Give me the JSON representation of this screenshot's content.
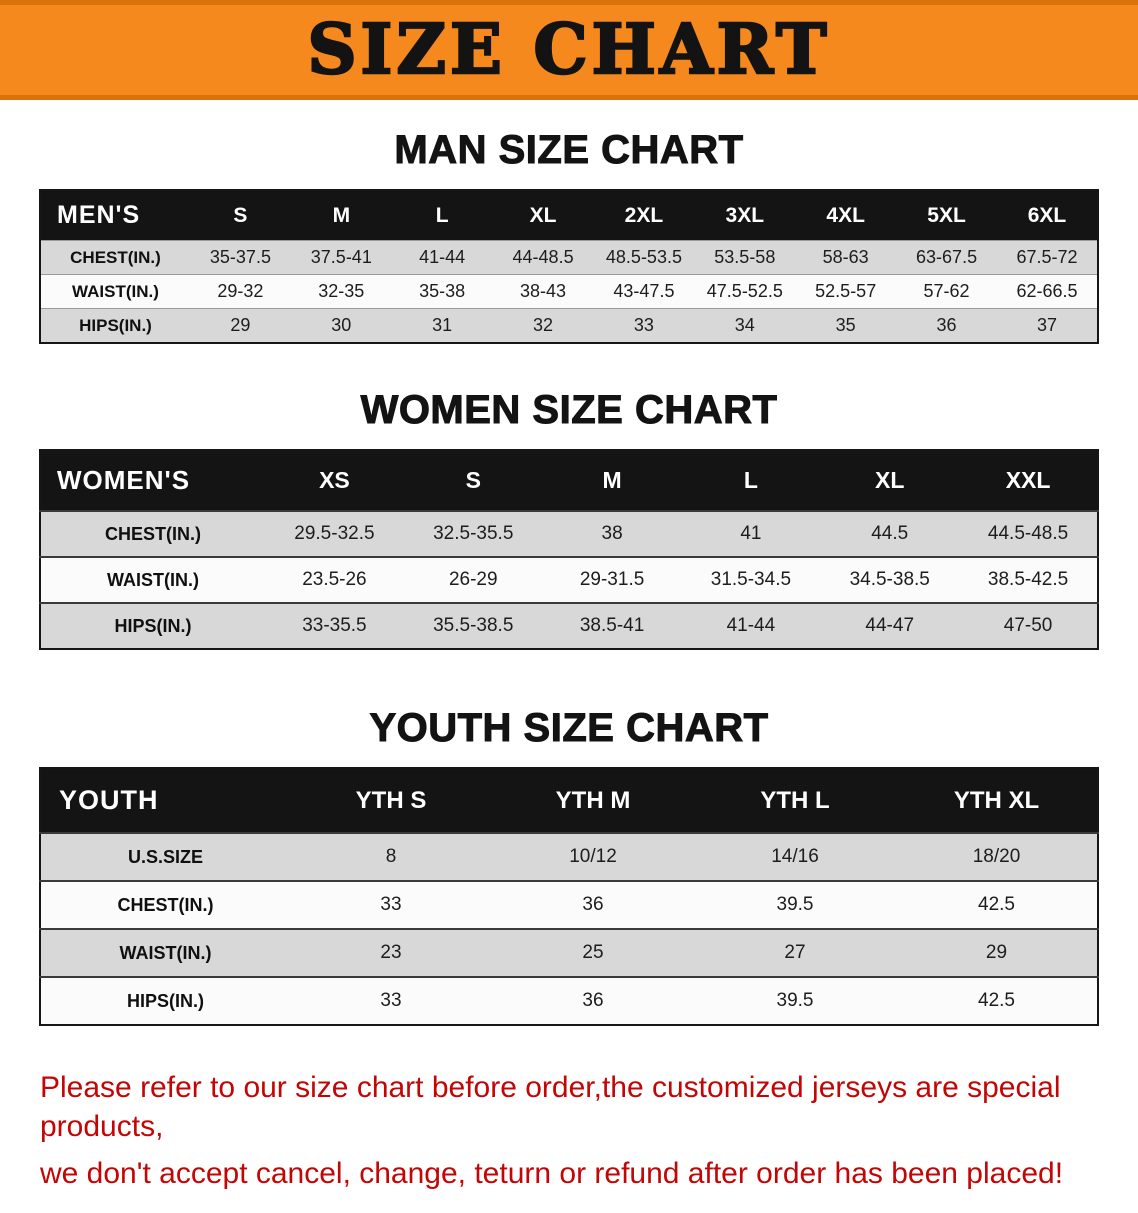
{
  "banner": {
    "title": "SIZE CHART"
  },
  "sections": [
    {
      "heading": "MAN SIZE CHART",
      "table": {
        "header": [
          "MEN'S",
          "S",
          "M",
          "L",
          "XL",
          "2XL",
          "3XL",
          "4XL",
          "5XL",
          "6XL"
        ],
        "rows": [
          [
            "CHEST(IN.)",
            "35-37.5",
            "37.5-41",
            "41-44",
            "44-48.5",
            "48.5-53.5",
            "53.5-58",
            "58-63",
            "63-67.5",
            "67.5-72"
          ],
          [
            "WAIST(IN.)",
            "29-32",
            "32-35",
            "35-38",
            "38-43",
            "43-47.5",
            "47.5-52.5",
            "52.5-57",
            "57-62",
            "62-66.5"
          ],
          [
            "HIPS(IN.)",
            "29",
            "30",
            "31",
            "32",
            "33",
            "34",
            "35",
            "36",
            "37"
          ]
        ]
      }
    },
    {
      "heading": "WOMEN SIZE CHART",
      "table": {
        "header": [
          "WOMEN'S",
          "XS",
          "S",
          "M",
          "L",
          "XL",
          "XXL"
        ],
        "rows": [
          [
            "CHEST(IN.)",
            "29.5-32.5",
            "32.5-35.5",
            "38",
            "41",
            "44.5",
            "44.5-48.5"
          ],
          [
            "WAIST(IN.)",
            "23.5-26",
            "26-29",
            "29-31.5",
            "31.5-34.5",
            "34.5-38.5",
            "38.5-42.5"
          ],
          [
            "HIPS(IN.)",
            "33-35.5",
            "35.5-38.5",
            "38.5-41",
            "41-44",
            "44-47",
            "47-50"
          ]
        ]
      }
    },
    {
      "heading": "YOUTH SIZE CHART",
      "table": {
        "header": [
          "YOUTH",
          "YTH S",
          "YTH M",
          "YTH L",
          "YTH XL"
        ],
        "rows": [
          [
            "U.S.SIZE",
            "8",
            "10/12",
            "14/16",
            "18/20"
          ],
          [
            "CHEST(IN.)",
            "33",
            "36",
            "39.5",
            "42.5"
          ],
          [
            "WAIST(IN.)",
            "23",
            "25",
            "27",
            "29"
          ],
          [
            "HIPS(IN.)",
            "33",
            "36",
            "39.5",
            "42.5"
          ]
        ]
      }
    }
  ],
  "footer": {
    "line1": "Please refer to our size chart before order,the customized jerseys are special products,",
    "line2": "we don't accept cancel, change, teturn or refund after order has been placed!"
  },
  "colors": {
    "banner_bg": "#F6891E",
    "banner_border": "#DA720B",
    "header_bg": "#141414",
    "stripe": "#D8D8D8",
    "row_white": "#FBFBFB",
    "notice_red": "#C40505"
  }
}
